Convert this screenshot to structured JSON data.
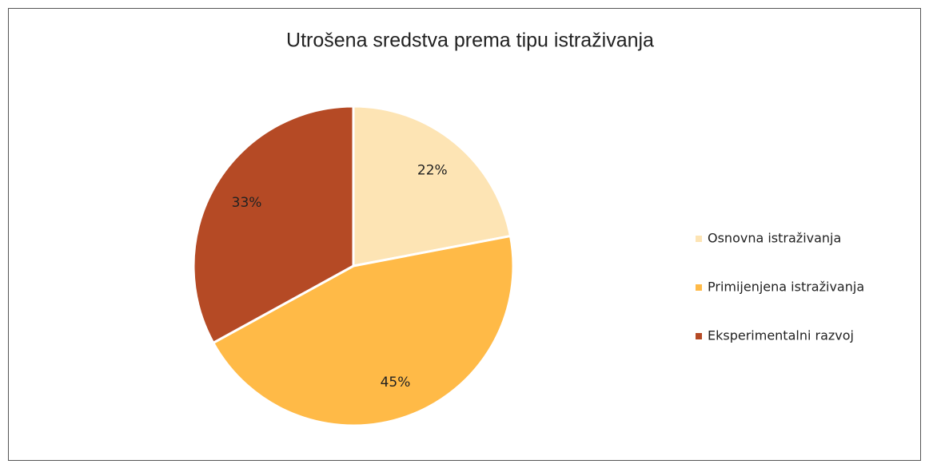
{
  "chart_data": {
    "type": "pie",
    "title": "Utrošena sredstva prema tipu istraživanja",
    "categories": [
      "Osnovna istraživanja",
      "Primijenjena istraživanja",
      "Eksperimentalni razvoj"
    ],
    "values": [
      22,
      45,
      33
    ],
    "value_labels": [
      "22%",
      "45%",
      "33%"
    ],
    "colors": [
      "#fde4b4",
      "#ffba47",
      "#b54a25"
    ],
    "legend": "right"
  }
}
